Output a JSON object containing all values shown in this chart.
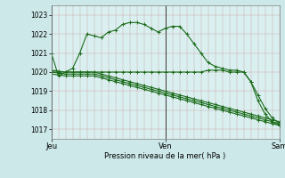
{
  "title": "Pression niveau de la mer( hPa )",
  "bg_color": "#cce8e8",
  "plot_bg_color": "#daf0f0",
  "line_color": "#1a6b1a",
  "ylim": [
    1016.5,
    1023.5
  ],
  "yticks": [
    1017,
    1018,
    1019,
    1020,
    1021,
    1022,
    1023
  ],
  "xtick_labels": [
    "Jeu",
    "Ven",
    "Sam"
  ],
  "xtick_positions": [
    0,
    16,
    32
  ],
  "n_points": 33,
  "series": [
    [
      1021.0,
      1019.8,
      1020.0,
      1020.2,
      1021.0,
      1022.0,
      1021.9,
      1021.8,
      1022.1,
      1022.2,
      1022.5,
      1022.6,
      1022.6,
      1022.5,
      1022.3,
      1022.1,
      1022.3,
      1022.4,
      1022.4,
      1022.0,
      1021.5,
      1021.0,
      1020.5,
      1020.3,
      1020.2,
      1020.1,
      1020.1,
      1020.0,
      1019.5,
      1018.8,
      1018.1,
      1017.6,
      1017.3
    ],
    [
      1020.0,
      1020.0,
      1020.0,
      1020.0,
      1020.0,
      1020.0,
      1020.0,
      1020.0,
      1020.0,
      1020.0,
      1020.0,
      1020.0,
      1020.0,
      1020.0,
      1020.0,
      1020.0,
      1020.0,
      1020.0,
      1020.0,
      1020.0,
      1020.0,
      1020.0,
      1020.1,
      1020.1,
      1020.1,
      1020.0,
      1020.0,
      1020.0,
      1019.5,
      1018.5,
      1017.8,
      1017.4,
      1017.2
    ],
    [
      1019.9,
      1019.85,
      1019.8,
      1019.8,
      1019.8,
      1019.8,
      1019.8,
      1019.7,
      1019.6,
      1019.5,
      1019.4,
      1019.3,
      1019.2,
      1019.1,
      1019.0,
      1018.9,
      1018.8,
      1018.7,
      1018.6,
      1018.5,
      1018.4,
      1018.3,
      1018.2,
      1018.1,
      1018.0,
      1017.9,
      1017.8,
      1017.7,
      1017.6,
      1017.5,
      1017.4,
      1017.3,
      1017.2
    ],
    [
      1020.0,
      1019.95,
      1019.9,
      1019.9,
      1019.9,
      1019.9,
      1019.9,
      1019.8,
      1019.7,
      1019.6,
      1019.5,
      1019.4,
      1019.3,
      1019.2,
      1019.1,
      1019.0,
      1018.9,
      1018.8,
      1018.7,
      1018.6,
      1018.5,
      1018.4,
      1018.3,
      1018.2,
      1018.1,
      1018.0,
      1017.9,
      1017.8,
      1017.7,
      1017.6,
      1017.5,
      1017.4,
      1017.3
    ],
    [
      1020.1,
      1020.05,
      1020.0,
      1020.0,
      1020.0,
      1020.0,
      1020.0,
      1019.9,
      1019.8,
      1019.7,
      1019.6,
      1019.5,
      1019.4,
      1019.3,
      1019.2,
      1019.1,
      1019.0,
      1018.9,
      1018.8,
      1018.7,
      1018.6,
      1018.5,
      1018.4,
      1018.3,
      1018.2,
      1018.1,
      1018.0,
      1017.9,
      1017.8,
      1017.7,
      1017.6,
      1017.5,
      1017.4
    ]
  ]
}
